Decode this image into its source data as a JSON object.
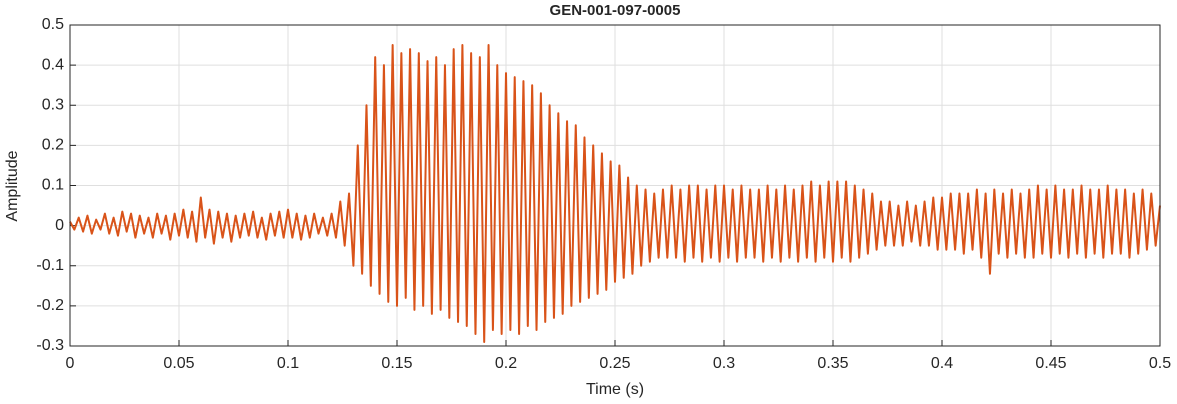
{
  "chart_data": {
    "type": "line",
    "title": "GEN-001-097-0005",
    "xlabel": "Time (s)",
    "ylabel": "Amplitude",
    "color": "#d95319",
    "grid": true,
    "xlim": [
      0,
      0.5
    ],
    "xticks": [
      0,
      0.05,
      0.1,
      0.15,
      0.2,
      0.25,
      0.3,
      0.35,
      0.4,
      0.45,
      0.5
    ],
    "ylim": [
      -0.3,
      0.5
    ],
    "yticks": [
      -0.3,
      -0.2,
      -0.1,
      0,
      0.1,
      0.2,
      0.3,
      0.4,
      0.5
    ],
    "x": [
      0,
      0.002,
      0.004,
      0.006,
      0.008,
      0.01,
      0.012,
      0.014,
      0.016,
      0.018,
      0.02,
      0.022,
      0.024,
      0.026,
      0.028,
      0.03,
      0.032,
      0.034,
      0.036,
      0.038,
      0.04,
      0.042,
      0.044,
      0.046,
      0.048,
      0.05,
      0.052,
      0.054,
      0.056,
      0.058,
      0.06,
      0.062,
      0.064,
      0.066,
      0.068,
      0.07,
      0.072,
      0.074,
      0.076,
      0.078,
      0.08,
      0.082,
      0.084,
      0.086,
      0.088,
      0.09,
      0.092,
      0.094,
      0.096,
      0.098,
      0.1,
      0.102,
      0.104,
      0.106,
      0.108,
      0.11,
      0.112,
      0.114,
      0.116,
      0.118,
      0.12,
      0.122,
      0.124,
      0.126,
      0.128,
      0.13,
      0.132,
      0.134,
      0.136,
      0.138,
      0.14,
      0.142,
      0.144,
      0.146,
      0.148,
      0.15,
      0.152,
      0.154,
      0.156,
      0.158,
      0.16,
      0.162,
      0.164,
      0.166,
      0.168,
      0.17,
      0.172,
      0.174,
      0.176,
      0.178,
      0.18,
      0.182,
      0.184,
      0.186,
      0.188,
      0.19,
      0.192,
      0.194,
      0.196,
      0.198,
      0.2,
      0.202,
      0.204,
      0.206,
      0.208,
      0.21,
      0.212,
      0.214,
      0.216,
      0.218,
      0.22,
      0.222,
      0.224,
      0.226,
      0.228,
      0.23,
      0.232,
      0.234,
      0.236,
      0.238,
      0.24,
      0.242,
      0.244,
      0.246,
      0.248,
      0.25,
      0.252,
      0.254,
      0.256,
      0.258,
      0.26,
      0.262,
      0.264,
      0.266,
      0.268,
      0.27,
      0.272,
      0.274,
      0.276,
      0.278,
      0.28,
      0.282,
      0.284,
      0.286,
      0.288,
      0.29,
      0.292,
      0.294,
      0.296,
      0.298,
      0.3,
      0.302,
      0.304,
      0.306,
      0.308,
      0.31,
      0.312,
      0.314,
      0.316,
      0.318,
      0.32,
      0.322,
      0.324,
      0.326,
      0.328,
      0.33,
      0.332,
      0.334,
      0.336,
      0.338,
      0.34,
      0.342,
      0.344,
      0.346,
      0.348,
      0.35,
      0.352,
      0.354,
      0.356,
      0.358,
      0.36,
      0.362,
      0.364,
      0.366,
      0.368,
      0.37,
      0.372,
      0.374,
      0.376,
      0.378,
      0.38,
      0.382,
      0.384,
      0.386,
      0.388,
      0.39,
      0.392,
      0.394,
      0.396,
      0.398,
      0.4,
      0.402,
      0.404,
      0.406,
      0.408,
      0.41,
      0.412,
      0.414,
      0.416,
      0.418,
      0.42,
      0.422,
      0.424,
      0.426,
      0.428,
      0.43,
      0.432,
      0.434,
      0.436,
      0.438,
      0.44,
      0.442,
      0.444,
      0.446,
      0.448,
      0.45,
      0.452,
      0.454,
      0.456,
      0.458,
      0.46,
      0.462,
      0.464,
      0.466,
      0.468,
      0.47,
      0.472,
      0.474,
      0.476,
      0.478,
      0.48,
      0.482,
      0.484,
      0.486,
      0.488,
      0.49,
      0.492,
      0.494,
      0.496,
      0.498,
      0.5
    ],
    "values": [
      0.01,
      -0.01,
      0.02,
      -0.015,
      0.025,
      -0.02,
      0.015,
      -0.01,
      0.03,
      -0.02,
      0.02,
      -0.025,
      0.035,
      -0.015,
      0.03,
      -0.03,
      0.025,
      -0.02,
      0.02,
      -0.03,
      0.03,
      -0.02,
      0.025,
      -0.035,
      0.03,
      -0.025,
      0.04,
      -0.03,
      0.035,
      -0.04,
      0.07,
      -0.03,
      0.04,
      -0.045,
      0.035,
      -0.03,
      0.03,
      -0.04,
      0.025,
      -0.03,
      0.03,
      -0.025,
      0.035,
      -0.03,
      0.02,
      -0.035,
      0.03,
      -0.025,
      0.035,
      -0.03,
      0.04,
      -0.03,
      0.03,
      -0.035,
      0.025,
      -0.03,
      0.03,
      -0.02,
      0.02,
      -0.025,
      0.03,
      -0.03,
      0.06,
      -0.05,
      0.08,
      -0.1,
      0.2,
      -0.12,
      0.3,
      -0.15,
      0.42,
      -0.17,
      0.4,
      -0.19,
      0.45,
      -0.2,
      0.43,
      -0.18,
      0.44,
      -0.21,
      0.43,
      -0.2,
      0.41,
      -0.22,
      0.42,
      -0.21,
      0.4,
      -0.23,
      0.44,
      -0.24,
      0.45,
      -0.25,
      0.43,
      -0.27,
      0.42,
      -0.29,
      0.45,
      -0.26,
      0.4,
      -0.27,
      0.38,
      -0.26,
      0.37,
      -0.27,
      0.36,
      -0.25,
      0.35,
      -0.26,
      0.33,
      -0.24,
      0.3,
      -0.23,
      0.28,
      -0.22,
      0.26,
      -0.2,
      0.25,
      -0.19,
      0.22,
      -0.18,
      0.2,
      -0.17,
      0.18,
      -0.16,
      0.16,
      -0.14,
      0.15,
      -0.13,
      0.12,
      -0.12,
      0.1,
      -0.1,
      0.09,
      -0.09,
      0.08,
      -0.08,
      0.09,
      -0.08,
      0.1,
      -0.08,
      0.09,
      -0.09,
      0.1,
      -0.08,
      0.1,
      -0.09,
      0.09,
      -0.08,
      0.1,
      -0.09,
      0.1,
      -0.08,
      0.09,
      -0.09,
      0.1,
      -0.08,
      0.09,
      -0.08,
      0.09,
      -0.09,
      0.1,
      -0.08,
      0.09,
      -0.09,
      0.1,
      -0.08,
      0.09,
      -0.09,
      0.1,
      -0.08,
      0.11,
      -0.09,
      0.1,
      -0.08,
      0.11,
      -0.09,
      0.11,
      -0.08,
      0.11,
      -0.09,
      0.1,
      -0.08,
      0.09,
      -0.07,
      0.08,
      -0.06,
      0.06,
      -0.05,
      0.06,
      -0.05,
      0.05,
      -0.05,
      0.06,
      -0.04,
      0.05,
      -0.05,
      0.06,
      -0.05,
      0.07,
      -0.06,
      0.07,
      -0.06,
      0.08,
      -0.06,
      0.08,
      -0.07,
      0.08,
      -0.06,
      0.09,
      -0.08,
      0.08,
      -0.12,
      0.09,
      -0.07,
      0.08,
      -0.08,
      0.09,
      -0.07,
      0.08,
      -0.08,
      0.09,
      -0.08,
      0.1,
      -0.07,
      0.09,
      -0.08,
      0.1,
      -0.07,
      0.09,
      -0.08,
      0.09,
      -0.07,
      0.1,
      -0.08,
      0.09,
      -0.07,
      0.09,
      -0.08,
      0.1,
      -0.07,
      0.09,
      -0.07,
      0.09,
      -0.08,
      0.08,
      -0.07,
      0.09,
      -0.06,
      0.08,
      -0.05,
      0.05
    ]
  }
}
